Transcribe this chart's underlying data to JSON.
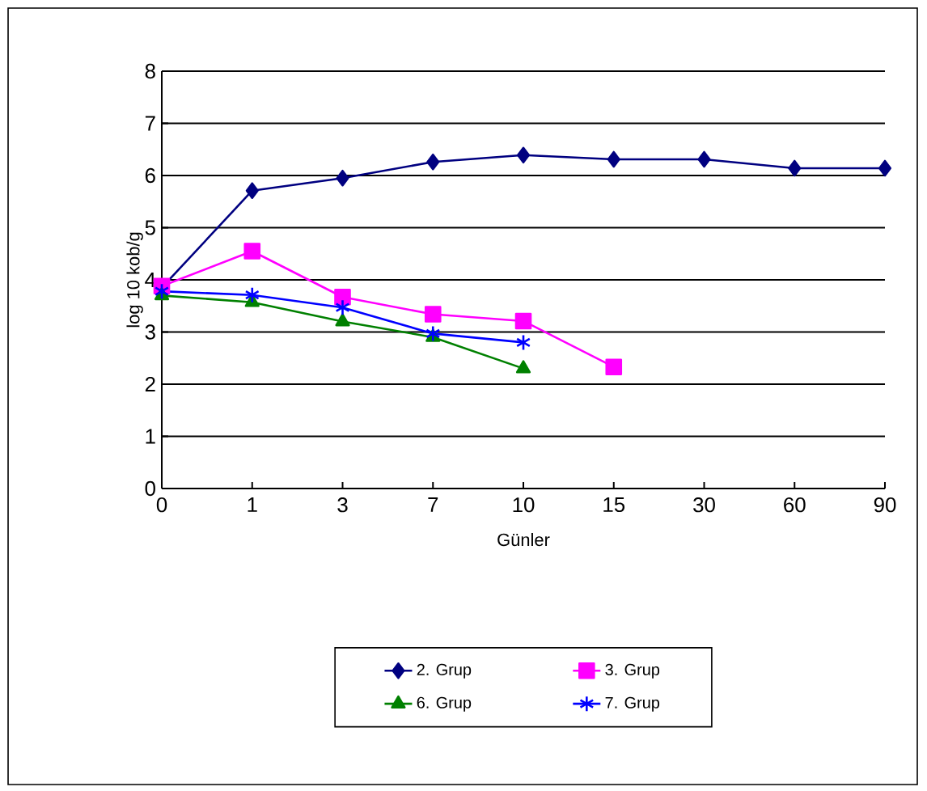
{
  "chart_data": {
    "type": "line",
    "xlabel": "Günler",
    "ylabel": "log 10 kob/g",
    "categories": [
      "0",
      "1",
      "3",
      "7",
      "10",
      "15",
      "30",
      "60",
      "90"
    ],
    "series": [
      {
        "name": "2. Grup",
        "color": "#000080",
        "marker": "diamond",
        "values": [
          3.85,
          5.71,
          5.95,
          6.26,
          6.39,
          6.31,
          6.31,
          6.14,
          6.14
        ]
      },
      {
        "name": "3. Grup",
        "color": "#ff00ff",
        "marker": "square",
        "values": [
          3.88,
          4.55,
          3.67,
          3.34,
          3.21,
          2.33,
          null,
          null,
          null
        ]
      },
      {
        "name": "6. Grup",
        "color": "#008000",
        "marker": "triangle",
        "values": [
          3.7,
          3.57,
          3.2,
          2.9,
          2.3,
          null,
          null,
          null,
          null
        ]
      },
      {
        "name": "7. Grup",
        "color": "#0000ff",
        "marker": "cross",
        "values": [
          3.78,
          3.71,
          3.47,
          2.97,
          2.8,
          null,
          null,
          null,
          null
        ]
      }
    ],
    "ylim": [
      0,
      8
    ],
    "yticks": [
      0,
      1,
      2,
      3,
      4,
      5,
      6,
      7,
      8
    ],
    "grid": "y",
    "legend": "bottom"
  }
}
